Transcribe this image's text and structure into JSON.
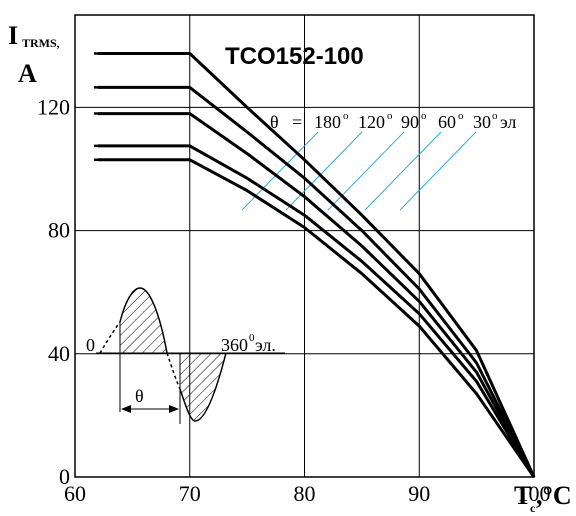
{
  "chart_data": {
    "type": "line",
    "title": "TCO152-100",
    "ylabel_main": "I",
    "ylabel_sub": "TRMS,",
    "ylabel_unit": "A",
    "xlabel_main": "T",
    "xlabel_sub": "c",
    "xlabel_unit": ",°C",
    "xlim": [
      60,
      100
    ],
    "ylim": [
      0,
      150
    ],
    "xticks": [
      "60",
      "70",
      "80",
      "90",
      "100"
    ],
    "xtick_values": [
      60,
      70,
      80,
      90,
      100
    ],
    "yticks": [
      "0",
      "40",
      "80",
      "120"
    ],
    "ytick_values": [
      0,
      40,
      80,
      120
    ],
    "grid": true,
    "series": [
      {
        "angle": "180",
        "flat": 137.5,
        "x": [
          62,
          70,
          75,
          80,
          85,
          90,
          95,
          100
        ],
        "y": [
          137.5,
          137.5,
          120,
          103,
          85,
          66,
          41,
          0
        ]
      },
      {
        "angle": "120",
        "flat": 126.5,
        "x": [
          62,
          70,
          75,
          80,
          85,
          90,
          95,
          100
        ],
        "y": [
          126.5,
          126.5,
          112,
          97,
          80,
          61,
          37,
          0
        ]
      },
      {
        "angle": "90",
        "flat": 118,
        "x": [
          62,
          70,
          75,
          80,
          85,
          90,
          95,
          100
        ],
        "y": [
          118,
          118,
          105,
          91,
          75,
          57,
          34,
          0
        ]
      },
      {
        "angle": "60",
        "flat": 107.5,
        "x": [
          62,
          70,
          75,
          80,
          85,
          90,
          95,
          100
        ],
        "y": [
          107.5,
          107.5,
          97,
          85,
          70,
          53,
          31,
          0
        ]
      },
      {
        "angle": "30",
        "flat": 103,
        "x": [
          62,
          70,
          75,
          80,
          85,
          90,
          95,
          100
        ],
        "y": [
          103,
          103,
          93,
          81,
          66,
          49,
          27,
          0
        ]
      }
    ],
    "legend_theta": "θ",
    "legend_eq": "=",
    "legend_angles": [
      "180",
      "120",
      "90",
      "60",
      "30"
    ],
    "legend_degree": "о",
    "legend_unit": "эл",
    "inset_zero": "0",
    "inset_360": "360",
    "inset_360_sup": "0",
    "inset_360_unit": "эл.",
    "inset_theta": "θ"
  }
}
